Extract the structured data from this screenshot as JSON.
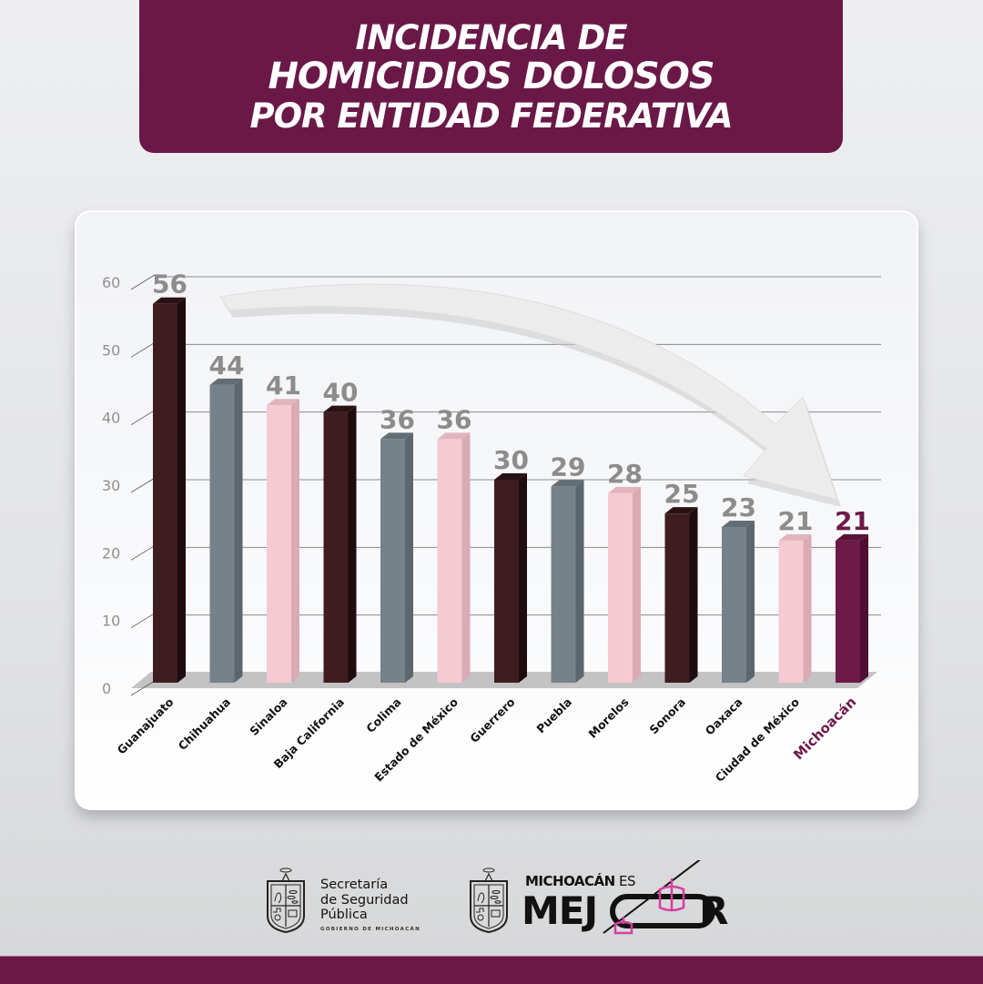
{
  "header": {
    "title_lines": [
      "INCIDENCIA DE",
      "HOMICIDIOS DOLOSOS",
      "POR ENTIDAD FEDERATIVA"
    ]
  },
  "colors": {
    "brand_purple": "#6a1848",
    "dark_bar": "#3e1d20",
    "gray_bar": "#76828a",
    "pink_bar": "#f5cad3",
    "highlight_bar": "#6e1a48",
    "value_label": "#8c8c8c"
  },
  "chart_data": {
    "type": "bar",
    "title": "INCIDENCIA DE HOMICIDIOS DOLOSOS POR ENTIDAD FEDERATIVA",
    "xlabel": "",
    "ylabel": "",
    "ylim": [
      0,
      60
    ],
    "yticks": [
      0,
      10,
      20,
      30,
      40,
      50,
      60
    ],
    "grid": true,
    "legend": null,
    "categories": [
      "Guanajuato",
      "Chihuahua",
      "Sinaloa",
      "Baja California",
      "Colima",
      "Estado de México",
      "Guerrero",
      "Puebla",
      "Morelos",
      "Sonora",
      "Oaxaca",
      "Ciudad de México",
      "Michoacán"
    ],
    "values": [
      56,
      44,
      41,
      40,
      36,
      36,
      30,
      29,
      28,
      25,
      23,
      21,
      21
    ],
    "bar_styles": [
      "dark",
      "gray",
      "pink",
      "dark",
      "gray",
      "pink",
      "dark",
      "gray",
      "pink",
      "dark",
      "gray",
      "pink",
      "highlight"
    ],
    "highlighted_category": "Michoacán",
    "annotations": [
      "Curved arrow from Guanajuato (56) pointing down to Michoacán (21)"
    ]
  },
  "footer": {
    "sspm_lines": [
      "Secretaría",
      "de Seguridad",
      "Pública"
    ],
    "sspm_subtitle": "GOBIERNO DE MICHOACÁN",
    "campaign_top_bold": "MICHOACÁN",
    "campaign_top_light": " ES",
    "campaign_big": "MEJ",
    "campaign_big_end": "R"
  }
}
